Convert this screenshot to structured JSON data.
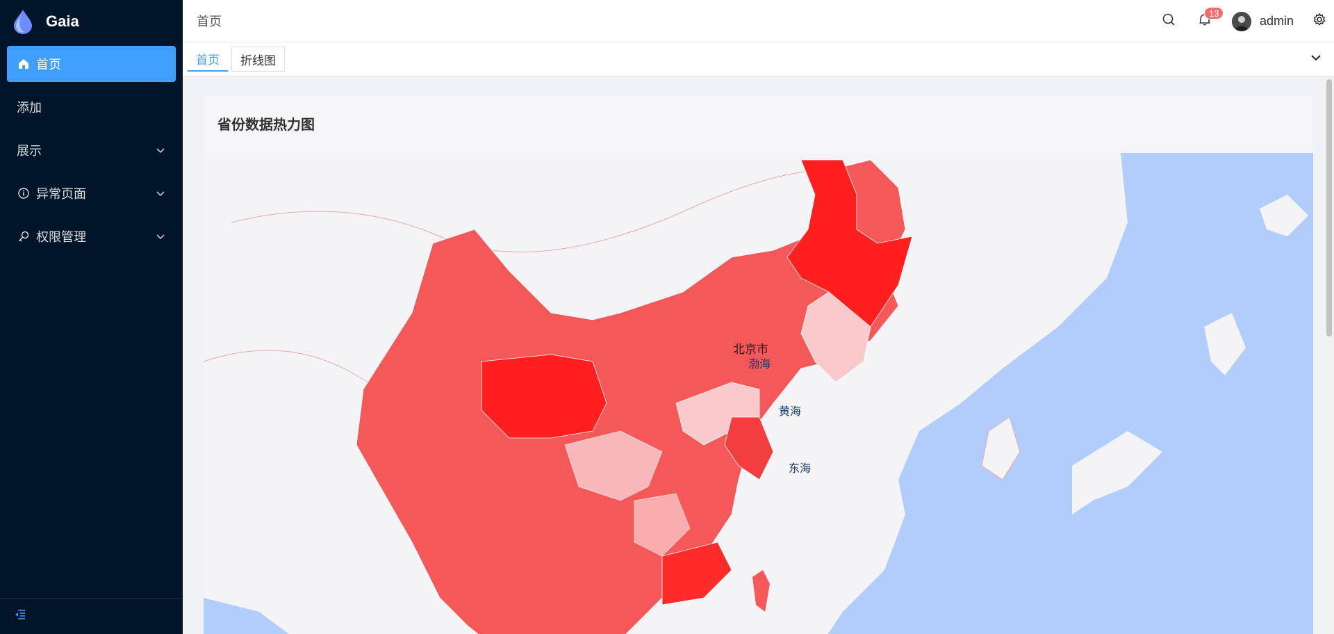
{
  "brand": {
    "name": "Gaia"
  },
  "sidebar": {
    "items": [
      {
        "label": "首页",
        "icon": "home-icon",
        "active": true
      },
      {
        "label": "添加",
        "icon": "",
        "active": false
      },
      {
        "label": "展示",
        "icon": "",
        "active": false,
        "expandable": true
      },
      {
        "label": "异常页面",
        "icon": "info-icon",
        "active": false,
        "expandable": true
      },
      {
        "label": "权限管理",
        "icon": "key-icon",
        "active": false,
        "expandable": true
      }
    ]
  },
  "header": {
    "breadcrumb": "首页",
    "notifications_count": "13",
    "username": "admin"
  },
  "tabs": [
    {
      "label": "首页",
      "active": true
    },
    {
      "label": "折线图",
      "active": false
    }
  ],
  "card": {
    "title": "省份数据热力图"
  },
  "map": {
    "labels": {
      "beijing": "北京市",
      "bohai": "渤海",
      "huanghai": "黄海",
      "donghai": "东海"
    }
  },
  "colors": {
    "accent": "#409eff",
    "sidebar": "#001529",
    "sea": "#b1cdfb",
    "heat_high": "#ff1f1f",
    "heat_mid": "#f45858",
    "heat_low": "#f9c9cb"
  }
}
